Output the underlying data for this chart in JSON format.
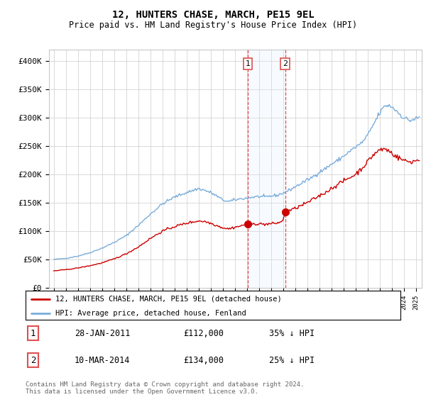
{
  "title": "12, HUNTERS CHASE, MARCH, PE15 9EL",
  "subtitle": "Price paid vs. HM Land Registry's House Price Index (HPI)",
  "ylim": [
    0,
    420000
  ],
  "yticks": [
    0,
    50000,
    100000,
    150000,
    200000,
    250000,
    300000,
    350000,
    400000
  ],
  "ytick_labels": [
    "£0",
    "£50K",
    "£100K",
    "£150K",
    "£200K",
    "£250K",
    "£300K",
    "£350K",
    "£400K"
  ],
  "hpi_color": "#7aaddb",
  "price_color": "#cc0000",
  "vline_color": "#e05050",
  "shade_color": "#ddeeff",
  "legend_label_red": "12, HUNTERS CHASE, MARCH, PE15 9EL (detached house)",
  "legend_label_blue": "HPI: Average price, detached house, Fenland",
  "transaction1_date": "28-JAN-2011",
  "transaction1_price": "£112,000",
  "transaction1_pct": "35% ↓ HPI",
  "transaction2_date": "10-MAR-2014",
  "transaction2_price": "£134,000",
  "transaction2_pct": "25% ↓ HPI",
  "footnote": "Contains HM Land Registry data © Crown copyright and database right 2024.\nThis data is licensed under the Open Government Licence v3.0.",
  "transaction1_x": 2011.07,
  "transaction1_y": 112000,
  "transaction2_x": 2014.19,
  "transaction2_y": 134000,
  "shade_x1": 2011.07,
  "shade_x2": 2014.19,
  "xlim_left": 1994.6,
  "xlim_right": 2025.5
}
